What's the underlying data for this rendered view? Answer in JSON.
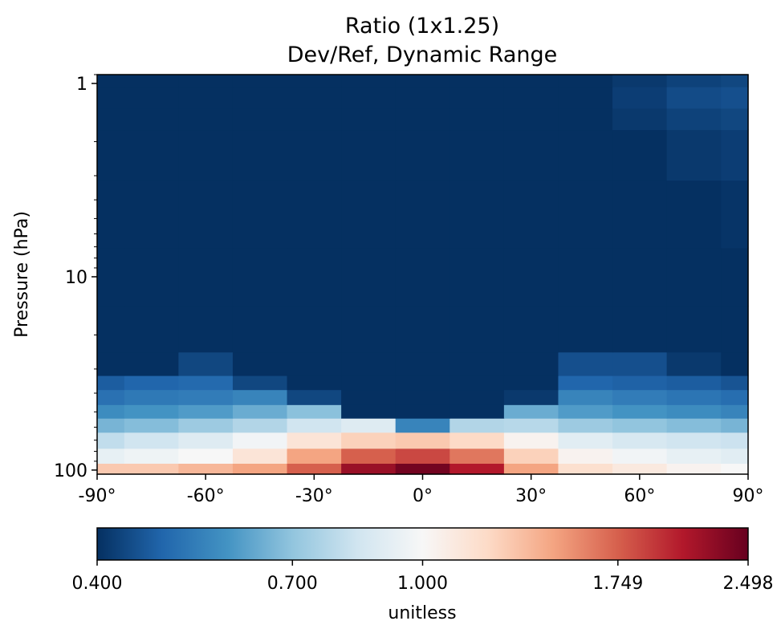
{
  "chart_data": {
    "type": "heatmap",
    "title": "Ratio (1x1.25)",
    "subtitle": "Dev/Ref, Dynamic Range",
    "ylabel": "Pressure (hPa)",
    "xlabel": "",
    "x_ticks": [
      "-90°",
      "-60°",
      "-30°",
      "0°",
      "30°",
      "60°",
      "90°"
    ],
    "x_tick_values": [
      -90,
      -60,
      -30,
      0,
      30,
      60,
      90
    ],
    "xlim": [
      -90,
      90
    ],
    "y_scale": "log",
    "y_inverted": true,
    "y_ticks": [
      "1",
      "10",
      "100"
    ],
    "y_tick_values": [
      1,
      10,
      100
    ],
    "ylim": [
      105,
      0.9
    ],
    "grid": false,
    "colormap": "RdBu_r",
    "colorbar": {
      "label": "unitless",
      "tick_labels": [
        "0.400",
        "0.700",
        "1.000",
        "1.749",
        "2.498"
      ],
      "tick_values": [
        0.4,
        0.7,
        1.0,
        1.749,
        2.498
      ],
      "min": 0.4,
      "max": 2.498,
      "colors": [
        "#053061",
        "#2166ac",
        "#4393c3",
        "#92c5de",
        "#d1e5f0",
        "#f7f7f7",
        "#fddbc7",
        "#f4a582",
        "#d6604d",
        "#b2182b",
        "#67001f"
      ]
    },
    "levels": [
      {
        "pressure": 100,
        "lat": [
          -90,
          -75,
          -60,
          -45,
          -30,
          -15,
          0,
          15,
          30,
          45,
          60,
          75,
          90
        ],
        "ratio": [
          1.4,
          1.4,
          1.5,
          1.6,
          1.9,
          2.3,
          2.45,
          2.2,
          1.6,
          1.25,
          1.15,
          1.05,
          1.0
        ]
      },
      {
        "pressure": 85,
        "lat": [
          -90,
          -75,
          -60,
          -45,
          -30,
          -15,
          0,
          15,
          30,
          45,
          60,
          75,
          90
        ],
        "ratio": [
          0.95,
          0.97,
          1.0,
          1.2,
          1.6,
          1.9,
          2.0,
          1.8,
          1.35,
          1.05,
          0.98,
          0.95,
          0.93
        ]
      },
      {
        "pressure": 70,
        "lat": [
          -90,
          -75,
          -60,
          -45,
          -30,
          -15,
          0,
          15,
          30,
          45,
          60,
          75,
          90
        ],
        "ratio": [
          0.85,
          0.88,
          0.92,
          0.98,
          1.2,
          1.35,
          1.4,
          1.3,
          1.05,
          0.93,
          0.9,
          0.88,
          0.87
        ]
      },
      {
        "pressure": 58,
        "lat": [
          -90,
          -75,
          -60,
          -45,
          -30,
          -15,
          0,
          15,
          30,
          45,
          60,
          75,
          90
        ],
        "ratio": [
          0.72,
          0.74,
          0.78,
          0.82,
          0.88,
          0.92,
          0.6,
          0.82,
          0.83,
          0.78,
          0.76,
          0.74,
          0.72
        ]
      },
      {
        "pressure": 50,
        "lat": [
          -90,
          -75,
          -60,
          -45,
          -30,
          -15,
          0,
          15,
          30,
          45,
          60,
          75,
          90
        ],
        "ratio": [
          0.62,
          0.64,
          0.66,
          0.7,
          0.75,
          0.4,
          0.4,
          0.4,
          0.7,
          0.66,
          0.64,
          0.62,
          0.6
        ]
      },
      {
        "pressure": 42,
        "lat": [
          -90,
          -75,
          -60,
          -45,
          -30,
          -15,
          0,
          15,
          30,
          45,
          60,
          75,
          90
        ],
        "ratio": [
          0.55,
          0.57,
          0.58,
          0.6,
          0.45,
          0.4,
          0.4,
          0.4,
          0.42,
          0.6,
          0.58,
          0.56,
          0.54
        ]
      },
      {
        "pressure": 35,
        "lat": [
          -90,
          -75,
          -60,
          -45,
          -30,
          -15,
          0,
          15,
          30,
          45,
          60,
          75,
          90
        ],
        "ratio": [
          0.5,
          0.52,
          0.53,
          0.45,
          0.4,
          0.4,
          0.4,
          0.4,
          0.4,
          0.52,
          0.51,
          0.5,
          0.48
        ]
      },
      {
        "pressure": 30,
        "lat": [
          -90,
          -75,
          -60,
          -45,
          -30,
          -15,
          0,
          15,
          30,
          45,
          60,
          75,
          90
        ],
        "ratio": [
          0.4,
          0.4,
          0.45,
          0.4,
          0.4,
          0.4,
          0.4,
          0.4,
          0.4,
          0.47,
          0.47,
          0.42,
          0.4
        ]
      },
      {
        "pressure": 20,
        "lat": [
          -90,
          -75,
          -60,
          -45,
          -30,
          -15,
          0,
          15,
          30,
          45,
          60,
          75,
          90
        ],
        "ratio": [
          0.4,
          0.4,
          0.4,
          0.4,
          0.4,
          0.4,
          0.4,
          0.4,
          0.4,
          0.4,
          0.4,
          0.4,
          0.4
        ]
      },
      {
        "pressure": 10,
        "lat": [
          -90,
          -75,
          -60,
          -45,
          -30,
          -15,
          0,
          15,
          30,
          45,
          60,
          75,
          90
        ],
        "ratio": [
          0.4,
          0.4,
          0.4,
          0.4,
          0.4,
          0.4,
          0.4,
          0.4,
          0.4,
          0.4,
          0.4,
          0.4,
          0.4
        ]
      },
      {
        "pressure": 5,
        "lat": [
          -90,
          -75,
          -60,
          -45,
          -30,
          -15,
          0,
          15,
          30,
          45,
          60,
          75,
          90
        ],
        "ratio": [
          0.4,
          0.4,
          0.4,
          0.4,
          0.4,
          0.4,
          0.4,
          0.4,
          0.4,
          0.4,
          0.4,
          0.4,
          0.41
        ]
      },
      {
        "pressure": 2,
        "lat": [
          -90,
          -75,
          -60,
          -45,
          -30,
          -15,
          0,
          15,
          30,
          45,
          60,
          75,
          90
        ],
        "ratio": [
          0.4,
          0.4,
          0.4,
          0.4,
          0.4,
          0.4,
          0.4,
          0.4,
          0.4,
          0.4,
          0.4,
          0.42,
          0.43
        ]
      },
      {
        "pressure": 1.5,
        "lat": [
          -90,
          -75,
          -60,
          -45,
          -30,
          -15,
          0,
          15,
          30,
          45,
          60,
          75,
          90
        ],
        "ratio": [
          0.4,
          0.4,
          0.4,
          0.4,
          0.4,
          0.4,
          0.4,
          0.4,
          0.4,
          0.4,
          0.42,
          0.44,
          0.45
        ]
      },
      {
        "pressure": 1.2,
        "lat": [
          -90,
          -75,
          -60,
          -45,
          -30,
          -15,
          0,
          15,
          30,
          45,
          60,
          75,
          90
        ],
        "ratio": [
          0.4,
          0.4,
          0.4,
          0.4,
          0.4,
          0.4,
          0.4,
          0.4,
          0.4,
          0.4,
          0.43,
          0.46,
          0.47
        ]
      },
      {
        "pressure": 0.9,
        "lat": [
          -90,
          -75,
          -60,
          -45,
          -30,
          -15,
          0,
          15,
          30,
          45,
          60,
          75,
          90
        ],
        "ratio": [
          0.4,
          0.4,
          0.4,
          0.4,
          0.4,
          0.4,
          0.4,
          0.4,
          0.4,
          0.4,
          0.42,
          0.44,
          0.45
        ]
      }
    ]
  }
}
